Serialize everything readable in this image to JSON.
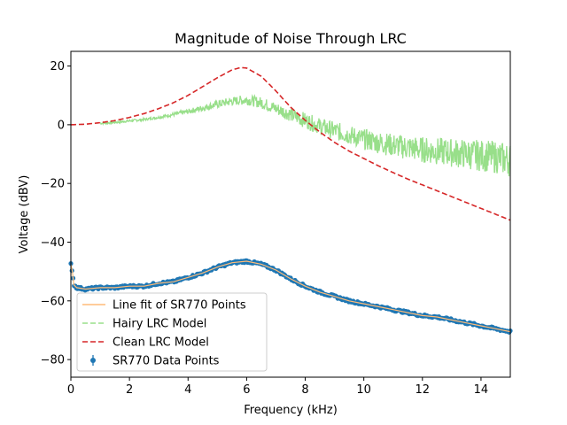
{
  "chart_data": {
    "type": "line",
    "title": "Magnitude of Noise Through LRC",
    "xlabel": "Frequency (kHz)",
    "ylabel": "Voltage (dBV)",
    "xlim": [
      0,
      15
    ],
    "ylim": [
      -86,
      25
    ],
    "xticks": [
      0,
      2,
      4,
      6,
      8,
      10,
      12,
      14
    ],
    "yticks": [
      -80,
      -60,
      -40,
      -20,
      0,
      20
    ],
    "grid": false,
    "legend_position": "lower-left",
    "legend": [
      {
        "label": "Line fit of SR770 Points",
        "style": "solid",
        "color": "#ffbb78"
      },
      {
        "label": "Hairy LRC Model",
        "style": "dashed",
        "color": "#98df8a"
      },
      {
        "label": "Clean LRC Model",
        "style": "dashed",
        "color": "#d62728"
      },
      {
        "label": "SR770 Data Points",
        "style": "errorbar-marker",
        "color": "#1f77b4"
      }
    ],
    "series": [
      {
        "name": "SR770 Data Points",
        "color": "#1f77b4",
        "x": [
          0,
          0.05,
          0.1,
          0.2,
          0.5,
          1,
          1.5,
          2,
          2.5,
          3,
          3.5,
          4,
          4.5,
          5,
          5.5,
          6,
          6.5,
          7,
          7.5,
          8,
          8.5,
          9,
          9.5,
          10,
          10.5,
          11,
          11.5,
          12,
          12.5,
          13,
          13.5,
          14,
          14.5,
          15
        ],
        "y": [
          -47.5,
          -50,
          -54.5,
          -55.5,
          -56,
          -55.5,
          -55.5,
          -55,
          -55,
          -54,
          -53.5,
          -52,
          -50.5,
          -48.5,
          -47,
          -46.5,
          -47.5,
          -49.5,
          -52.5,
          -55,
          -57,
          -58.5,
          -60,
          -61,
          -62,
          -63,
          -64,
          -65,
          -65.5,
          -66.5,
          -67.5,
          -68.5,
          -69.5,
          -70.5
        ]
      },
      {
        "name": "Line fit of SR770 Points",
        "color": "#ffbb78",
        "x": [
          0,
          0.05,
          0.1,
          0.2,
          0.5,
          1,
          1.5,
          2,
          2.5,
          3,
          3.5,
          4,
          4.5,
          5,
          5.5,
          6,
          6.5,
          7,
          7.5,
          8,
          8.5,
          9,
          9.5,
          10,
          10.5,
          11,
          11.5,
          12,
          12.5,
          13,
          13.5,
          14,
          14.5,
          15
        ],
        "y": [
          -47.5,
          -50,
          -54.5,
          -55.5,
          -56,
          -55.5,
          -55.5,
          -55,
          -55,
          -54,
          -53.5,
          -52,
          -50.5,
          -48.5,
          -47,
          -46.5,
          -47.5,
          -49.5,
          -52.5,
          -55,
          -57,
          -58.5,
          -60,
          -61,
          -62,
          -63,
          -64,
          -65,
          -65.5,
          -66.5,
          -67.5,
          -68.5,
          -69.5,
          -70.5
        ]
      },
      {
        "name": "Hairy LRC Model",
        "color": "#98df8a",
        "x": [
          1,
          1.5,
          2,
          2.5,
          3,
          3.5,
          4,
          4.5,
          5,
          5.5,
          6,
          6.5,
          7,
          7.5,
          8,
          8.5,
          9,
          9.5,
          10,
          10.5,
          11,
          11.5,
          12,
          12.5,
          13,
          13.5,
          14,
          14.5,
          15
        ],
        "y": [
          0.5,
          0.8,
          1.3,
          1.8,
          2.5,
          3.5,
          4.5,
          5.7,
          7,
          8,
          8.5,
          7.5,
          5.5,
          3.5,
          1.5,
          -0.5,
          -2,
          -3.5,
          -5,
          -6,
          -7,
          -7.8,
          -8.5,
          -9,
          -9.5,
          -10,
          -10.5,
          -11,
          -12
        ]
      },
      {
        "name": "Clean LRC Model",
        "color": "#d62728",
        "x": [
          0,
          0.5,
          1,
          1.5,
          2,
          2.5,
          3,
          3.5,
          4,
          4.5,
          5,
          5.5,
          5.8,
          6,
          6.5,
          7,
          7.5,
          8,
          8.5,
          9,
          9.5,
          10,
          10.5,
          11,
          11.5,
          12,
          12.5,
          13,
          13.5,
          14,
          14.5,
          15
        ],
        "y": [
          0,
          0.2,
          0.7,
          1.4,
          2.5,
          3.8,
          5.5,
          7.5,
          10,
          13,
          16,
          18.7,
          19.5,
          19.3,
          16.5,
          11.5,
          6,
          1.5,
          -2.5,
          -6,
          -9,
          -11.5,
          -14,
          -16.3,
          -18.5,
          -20.5,
          -22.5,
          -24.5,
          -26.5,
          -28.5,
          -30.5,
          -32.5
        ]
      }
    ]
  }
}
